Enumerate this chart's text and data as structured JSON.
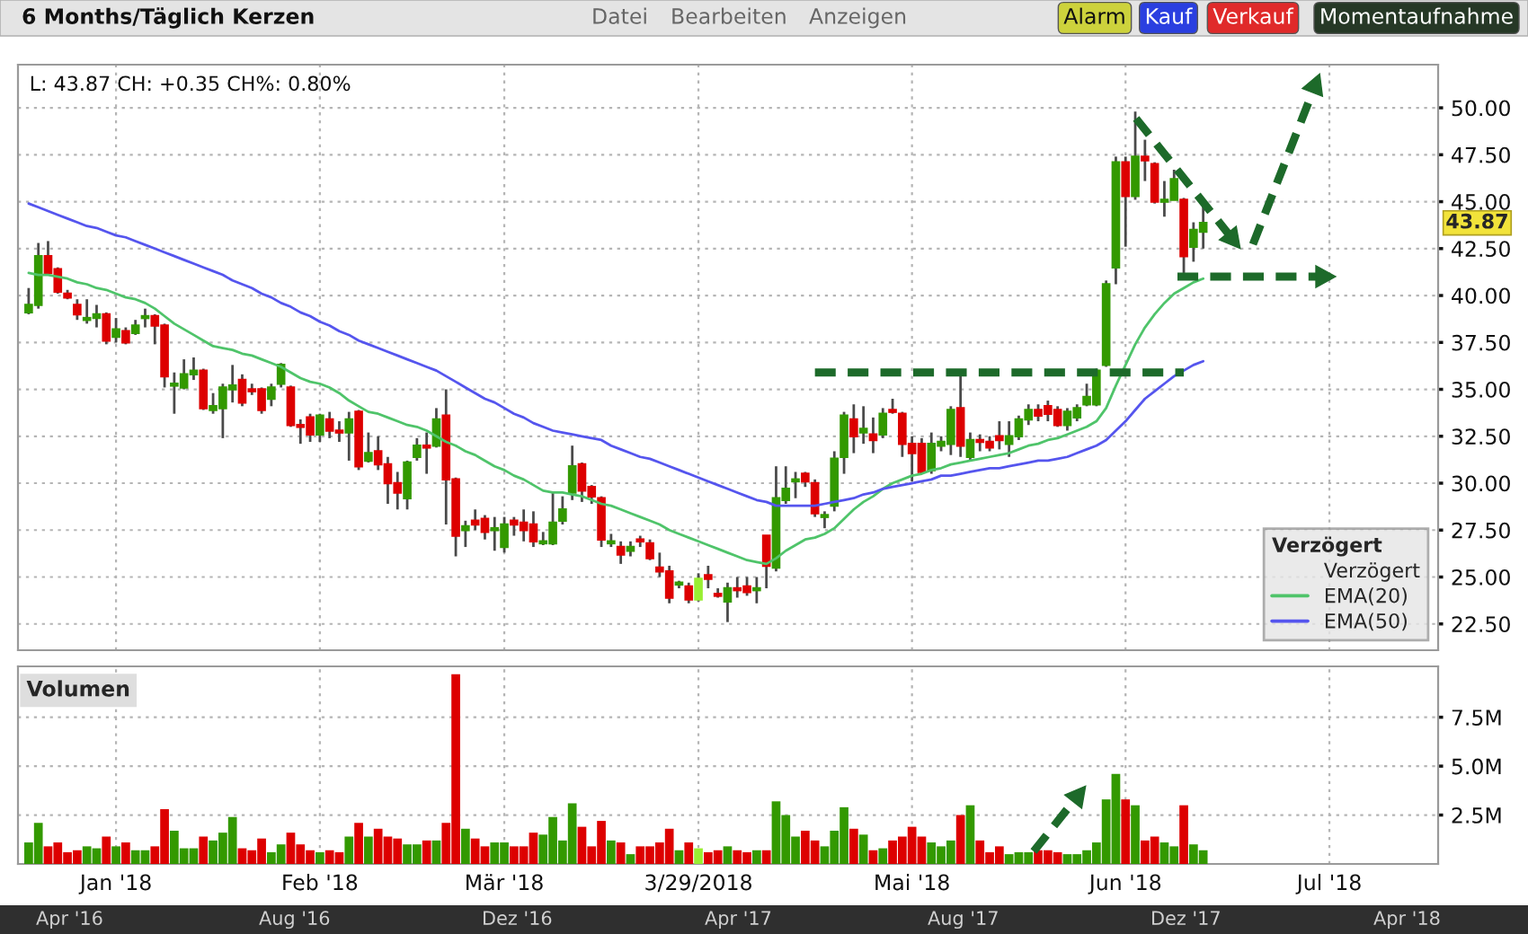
{
  "chart_data": [
    {
      "type": "candlestick",
      "categories": [
        null,
        null,
        null,
        null,
        null,
        null,
        null,
        null,
        null,
        null,
        null,
        null,
        null,
        null,
        null,
        null,
        null,
        null,
        null,
        null,
        null,
        null,
        null,
        null,
        null,
        null,
        null,
        null,
        null,
        null,
        null,
        null,
        null,
        null,
        null,
        null,
        null,
        null,
        null,
        null,
        null,
        null,
        null,
        null,
        null,
        null,
        null,
        null,
        null,
        null,
        null,
        null,
        null,
        null,
        null,
        null,
        null,
        null,
        null,
        null,
        null,
        null,
        null,
        null,
        null,
        null,
        null,
        null,
        null,
        null,
        null,
        null,
        null,
        null,
        null,
        null,
        null,
        null,
        null,
        null,
        null,
        null,
        null,
        null,
        null,
        null,
        null,
        null,
        null,
        null,
        null,
        null,
        null,
        null,
        null,
        null,
        null,
        null,
        null,
        null,
        null,
        null,
        null,
        null,
        null,
        null,
        null,
        null,
        null,
        null,
        null,
        null,
        null,
        null,
        null,
        null,
        null,
        null,
        null,
        null,
        null,
        null,
        null,
        null,
        null,
        null,
        null,
        null,
        null,
        null,
        null,
        null,
        null,
        null,
        null,
        null,
        null,
        null,
        null,
        null,
        null,
        null,
        null,
        null,
        null,
        null
      ],
      "series": [
        {
          "type": "candlestick",
          "name": "Verzögert",
          "ohlc": [
            [
              39.1,
              40.4,
              39.0,
              39.5
            ],
            [
              39.5,
              42.8,
              39.3,
              42.1
            ],
            [
              42.1,
              42.9,
              41.1,
              41.2
            ],
            [
              41.4,
              41.5,
              40.1,
              40.2
            ],
            [
              40.1,
              40.3,
              39.8,
              39.9
            ],
            [
              39.5,
              39.8,
              38.7,
              39.0
            ],
            [
              38.7,
              39.8,
              38.5,
              38.8
            ],
            [
              38.8,
              39.5,
              38.3,
              39.0
            ],
            [
              39.0,
              39.1,
              37.4,
              37.6
            ],
            [
              37.8,
              38.8,
              37.5,
              38.2
            ],
            [
              38.1,
              38.3,
              37.4,
              37.5
            ],
            [
              38.0,
              38.7,
              37.9,
              38.4
            ],
            [
              38.8,
              39.3,
              38.3,
              38.9
            ],
            [
              38.9,
              39.0,
              37.4,
              38.4
            ],
            [
              38.4,
              38.5,
              35.1,
              35.7
            ],
            [
              35.2,
              35.9,
              33.7,
              35.3
            ],
            [
              35.1,
              36.6,
              35.0,
              35.8
            ],
            [
              35.8,
              36.7,
              35.5,
              36.0
            ],
            [
              36.0,
              36.1,
              33.9,
              34.0
            ],
            [
              33.9,
              34.8,
              33.7,
              34.1
            ],
            [
              34.0,
              35.3,
              32.4,
              35.1
            ],
            [
              35.0,
              36.3,
              34.3,
              35.2
            ],
            [
              35.5,
              35.8,
              34.1,
              34.3
            ],
            [
              35.0,
              35.3,
              34.7,
              34.9
            ],
            [
              35.0,
              35.1,
              33.7,
              33.9
            ],
            [
              34.5,
              35.3,
              34.1,
              35.1
            ],
            [
              35.3,
              36.4,
              35.1,
              36.3
            ],
            [
              35.1,
              35.2,
              33.0,
              33.1
            ],
            [
              33.1,
              33.4,
              32.1,
              33.0
            ],
            [
              33.5,
              33.7,
              32.2,
              32.6
            ],
            [
              32.6,
              33.7,
              32.2,
              33.6
            ],
            [
              33.4,
              33.8,
              32.4,
              32.8
            ],
            [
              32.8,
              33.3,
              32.2,
              32.7
            ],
            [
              32.7,
              33.8,
              31.2,
              33.4
            ],
            [
              33.8,
              33.9,
              30.7,
              30.9
            ],
            [
              31.2,
              32.7,
              31.1,
              31.6
            ],
            [
              31.7,
              32.5,
              30.7,
              31.0
            ],
            [
              31.0,
              31.4,
              28.9,
              30.0
            ],
            [
              30.0,
              30.6,
              28.6,
              29.5
            ],
            [
              29.2,
              31.2,
              28.6,
              31.1
            ],
            [
              31.4,
              32.4,
              31.2,
              32.0
            ],
            [
              32.0,
              32.7,
              30.5,
              31.9
            ],
            [
              32.0,
              34.0,
              31.9,
              33.4
            ],
            [
              33.6,
              35.0,
              27.8,
              30.2
            ],
            [
              30.2,
              30.3,
              26.1,
              27.2
            ],
            [
              27.5,
              28.0,
              26.6,
              27.7
            ],
            [
              28.0,
              28.6,
              27.5,
              27.8
            ],
            [
              28.1,
              28.3,
              27.0,
              27.4
            ],
            [
              27.5,
              28.2,
              26.4,
              27.6
            ],
            [
              26.6,
              28.2,
              26.3,
              27.8
            ],
            [
              28.0,
              28.2,
              27.2,
              27.8
            ],
            [
              27.9,
              28.6,
              26.9,
              27.5
            ],
            [
              27.8,
              28.5,
              26.6,
              26.9
            ],
            [
              26.8,
              27.4,
              26.7,
              26.9
            ],
            [
              26.8,
              29.5,
              26.7,
              27.9
            ],
            [
              28.0,
              29.3,
              27.8,
              28.6
            ],
            [
              29.5,
              32.0,
              29.1,
              30.9
            ],
            [
              31.0,
              31.1,
              29.0,
              29.6
            ],
            [
              29.8,
              29.9,
              28.9,
              29.3
            ],
            [
              29.2,
              29.3,
              26.6,
              27.0
            ],
            [
              26.8,
              27.3,
              26.6,
              26.9
            ],
            [
              26.6,
              26.9,
              25.7,
              26.2
            ],
            [
              26.4,
              26.9,
              26.1,
              26.6
            ],
            [
              27.0,
              27.2,
              26.6,
              26.9
            ],
            [
              26.8,
              27.0,
              25.9,
              26.0
            ],
            [
              25.5,
              26.3,
              25.0,
              25.3
            ],
            [
              25.3,
              25.6,
              23.6,
              23.9
            ],
            [
              24.6,
              24.8,
              24.4,
              24.7
            ],
            [
              24.5,
              24.7,
              23.6,
              23.8
            ],
            [
              23.8,
              25.2,
              23.7,
              24.9
            ],
            [
              25.1,
              25.6,
              24.4,
              24.9
            ],
            [
              24.1,
              24.4,
              23.9,
              24.0
            ],
            [
              23.7,
              24.7,
              22.6,
              24.4
            ],
            [
              24.4,
              25.0,
              23.9,
              24.3
            ],
            [
              24.5,
              25.0,
              24.0,
              24.2
            ],
            [
              24.3,
              25.0,
              23.6,
              24.4
            ],
            [
              27.2,
              27.2,
              24.4,
              25.6
            ],
            [
              25.5,
              30.9,
              25.3,
              29.2
            ],
            [
              29.1,
              30.9,
              28.9,
              29.7
            ],
            [
              30.1,
              30.6,
              29.2,
              30.2
            ],
            [
              30.5,
              30.6,
              29.8,
              30.1
            ],
            [
              30.0,
              30.2,
              28.2,
              28.4
            ],
            [
              28.2,
              28.5,
              27.6,
              28.3
            ],
            [
              28.8,
              31.7,
              28.5,
              31.3
            ],
            [
              31.4,
              33.8,
              30.5,
              33.6
            ],
            [
              33.4,
              34.2,
              31.6,
              32.5
            ],
            [
              32.7,
              34.1,
              32.1,
              32.9
            ],
            [
              32.6,
              33.5,
              31.6,
              32.3
            ],
            [
              32.6,
              34.0,
              32.4,
              33.7
            ],
            [
              33.9,
              34.5,
              33.7,
              33.8
            ],
            [
              33.7,
              33.8,
              31.4,
              32.1
            ],
            [
              32.1,
              32.5,
              30.1,
              31.6
            ],
            [
              32.1,
              32.4,
              30.5,
              30.6
            ],
            [
              30.7,
              32.7,
              30.5,
              32.1
            ],
            [
              32.0,
              32.5,
              31.7,
              32.2
            ],
            [
              32.1,
              34.1,
              31.5,
              33.9
            ],
            [
              34.0,
              35.8,
              31.4,
              32.0
            ],
            [
              31.4,
              32.7,
              31.2,
              32.3
            ],
            [
              32.3,
              32.6,
              31.7,
              32.2
            ],
            [
              32.2,
              32.5,
              31.7,
              31.9
            ],
            [
              32.5,
              33.3,
              31.8,
              32.3
            ],
            [
              32.1,
              33.3,
              31.4,
              32.5
            ],
            [
              32.5,
              33.6,
              32.3,
              33.4
            ],
            [
              33.4,
              34.2,
              33.1,
              33.9
            ],
            [
              33.9,
              34.2,
              33.3,
              33.6
            ],
            [
              34.1,
              34.4,
              33.3,
              33.7
            ],
            [
              33.9,
              34.1,
              33.0,
              33.1
            ],
            [
              33.1,
              34.0,
              32.8,
              33.8
            ],
            [
              33.5,
              34.2,
              33.3,
              34.0
            ],
            [
              34.2,
              35.3,
              34.1,
              34.6
            ],
            [
              34.2,
              36.1,
              34.1,
              36.0
            ],
            [
              36.3,
              40.8,
              36.2,
              40.6
            ],
            [
              41.5,
              47.4,
              40.6,
              47.1
            ],
            [
              47.1,
              47.4,
              42.6,
              45.3
            ],
            [
              45.3,
              49.8,
              45.1,
              47.4
            ],
            [
              47.4,
              48.3,
              46.1,
              47.2
            ],
            [
              47.0,
              47.1,
              44.9,
              45.0
            ],
            [
              45.0,
              46.1,
              44.2,
              45.1
            ],
            [
              45.1,
              46.7,
              45.1,
              46.2
            ],
            [
              45.1,
              45.2,
              41.2,
              42.1
            ],
            [
              42.6,
              43.9,
              41.8,
              43.5
            ],
            [
              43.4,
              44.8,
              42.5,
              43.87
            ],
            null,
            null,
            null,
            null,
            null,
            null,
            null,
            null,
            null,
            null,
            null,
            null,
            null,
            null,
            null,
            null,
            null,
            null,
            null,
            null,
            null,
            null,
            null,
            null
          ],
          "colors": [
            "#339900",
            "#339900",
            "#dd0000",
            "#dd0000",
            "#dd0000",
            "#dd0000",
            "#339900",
            "#339900",
            "#dd0000",
            "#339900",
            "#dd0000",
            "#339900",
            "#339900",
            "#dd0000",
            "#dd0000",
            "#339900",
            "#339900",
            "#339900",
            "#dd0000",
            "#339900",
            "#339900",
            "#339900",
            "#dd0000",
            "#dd0000",
            "#dd0000",
            "#339900",
            "#339900",
            "#dd0000",
            "#dd0000",
            "#dd0000",
            "#339900",
            "#dd0000",
            "#dd0000",
            "#339900",
            "#dd0000",
            "#339900",
            "#dd0000",
            "#dd0000",
            "#dd0000",
            "#339900",
            "#339900",
            "#dd0000",
            "#339900",
            "#dd0000",
            "#dd0000",
            "#339900",
            "#dd0000",
            "#dd0000",
            "#339900",
            "#339900",
            "#dd0000",
            "#dd0000",
            "#dd0000",
            "#339900",
            "#339900",
            "#339900",
            "#339900",
            "#dd0000",
            "#dd0000",
            "#dd0000",
            "#339900",
            "#dd0000",
            "#339900",
            "#dd0000",
            "#dd0000",
            "#dd0000",
            "#dd0000",
            "#339900",
            "#dd0000",
            "#99ee33",
            "#dd0000",
            "#dd0000",
            "#339900",
            "#dd0000",
            "#dd0000",
            "#339900",
            "#dd0000",
            "#339900",
            "#339900",
            "#339900",
            "#dd0000",
            "#dd0000",
            "#339900",
            "#339900",
            "#339900",
            "#dd0000",
            "#339900",
            "#dd0000",
            "#339900",
            "#dd0000",
            "#dd0000",
            "#dd0000",
            "#dd0000",
            "#339900",
            "#339900",
            "#339900",
            "#dd0000",
            "#339900",
            "#dd0000",
            "#dd0000",
            "#dd0000",
            "#339900",
            "#339900",
            "#339900",
            "#dd0000",
            "#dd0000",
            "#dd0000",
            "#339900",
            "#339900",
            "#339900",
            "#339900",
            "#339900",
            "#339900",
            "#dd0000",
            "#339900",
            "#dd0000",
            "#dd0000",
            "#339900",
            "#339900",
            "#dd0000",
            "#339900",
            "#339900",
            null,
            null,
            null,
            null,
            null,
            null,
            null,
            null,
            null,
            null,
            null,
            null,
            null,
            null,
            null,
            null,
            null,
            null,
            null,
            null,
            null,
            null,
            null,
            null
          ]
        },
        {
          "type": "line",
          "name": "EMA(20)",
          "color": "#4fc46a",
          "values": [
            41.2,
            41.1,
            41.1,
            41.0,
            40.9,
            40.7,
            40.6,
            40.4,
            40.3,
            40.1,
            39.9,
            39.8,
            39.6,
            39.3,
            38.9,
            38.5,
            38.2,
            37.9,
            37.6,
            37.3,
            37.2,
            37.1,
            36.9,
            36.8,
            36.6,
            36.4,
            36.2,
            35.9,
            35.6,
            35.4,
            35.3,
            35.1,
            34.8,
            34.4,
            34.1,
            33.8,
            33.7,
            33.5,
            33.3,
            33.1,
            33.0,
            32.8,
            32.5,
            32.2,
            32.0,
            31.7,
            31.5,
            31.2,
            30.9,
            30.7,
            30.4,
            30.2,
            29.9,
            29.6,
            29.5,
            29.5,
            29.4,
            29.3,
            29.1,
            28.9,
            28.8,
            28.6,
            28.4,
            28.2,
            28.0,
            27.8,
            27.5,
            27.3,
            27.1,
            26.9,
            26.7,
            26.5,
            26.3,
            26.1,
            25.9,
            25.8,
            25.7,
            26.0,
            26.4,
            26.7,
            27.0,
            27.1,
            27.3,
            27.6,
            28.1,
            28.6,
            29.0,
            29.3,
            29.7,
            30.0,
            30.2,
            30.4,
            30.5,
            30.7,
            30.8,
            31.0,
            31.1,
            31.2,
            31.3,
            31.4,
            31.5,
            31.6,
            31.8,
            32.0,
            32.1,
            32.3,
            32.4,
            32.6,
            32.8,
            33.0,
            33.3,
            34.0,
            35.2,
            36.3,
            37.4,
            38.3,
            39.0,
            39.6,
            40.1,
            40.4,
            40.7,
            40.9,
            null,
            null,
            null,
            null,
            null,
            null,
            null,
            null,
            null,
            null,
            null,
            null,
            null,
            null,
            null,
            null,
            null,
            null,
            null,
            null,
            null,
            null,
            null,
            null
          ]
        },
        {
          "type": "line",
          "name": "EMA(50)",
          "color": "#5555ee",
          "values": [
            44.9,
            44.7,
            44.5,
            44.3,
            44.1,
            43.9,
            43.7,
            43.6,
            43.4,
            43.2,
            43.1,
            42.9,
            42.7,
            42.5,
            42.3,
            42.1,
            41.9,
            41.7,
            41.5,
            41.3,
            41.1,
            40.8,
            40.6,
            40.4,
            40.1,
            39.9,
            39.6,
            39.4,
            39.1,
            38.9,
            38.6,
            38.4,
            38.1,
            37.9,
            37.6,
            37.4,
            37.2,
            37.0,
            36.8,
            36.6,
            36.4,
            36.2,
            36.0,
            35.7,
            35.4,
            35.1,
            34.8,
            34.5,
            34.3,
            34.0,
            33.7,
            33.5,
            33.2,
            33.0,
            32.8,
            32.7,
            32.6,
            32.5,
            32.4,
            32.3,
            32.0,
            31.8,
            31.6,
            31.4,
            31.3,
            31.1,
            30.9,
            30.7,
            30.5,
            30.3,
            30.1,
            29.9,
            29.7,
            29.5,
            29.3,
            29.1,
            29.0,
            28.8,
            28.8,
            28.8,
            28.8,
            28.8,
            28.9,
            29.0,
            29.1,
            29.2,
            29.4,
            29.5,
            29.7,
            29.8,
            29.9,
            30.0,
            30.1,
            30.2,
            30.4,
            30.4,
            30.5,
            30.6,
            30.7,
            30.8,
            30.8,
            30.9,
            31.0,
            31.1,
            31.2,
            31.2,
            31.3,
            31.4,
            31.6,
            31.8,
            32.0,
            32.3,
            32.8,
            33.3,
            33.9,
            34.5,
            34.9,
            35.3,
            35.7,
            36.0,
            36.3,
            36.5,
            null,
            null,
            null,
            null,
            null,
            null,
            null,
            null,
            null,
            null,
            null,
            null,
            null,
            null,
            null,
            null,
            null,
            null,
            null,
            null,
            null,
            null,
            null,
            null
          ]
        },
        {
          "type": "line",
          "color": "#1d6a2a",
          "line_style": "dashed",
          "values": [
            null,
            null,
            null,
            null,
            null,
            null,
            null,
            null,
            null,
            null,
            null,
            null,
            null,
            null,
            null,
            null,
            null,
            null,
            null,
            null,
            null,
            null,
            null,
            null,
            null,
            null,
            null,
            null,
            null,
            null,
            null,
            null,
            null,
            null,
            null,
            null,
            null,
            null,
            null,
            null,
            null,
            null,
            null,
            null,
            null,
            null,
            null,
            null,
            null,
            null,
            null,
            null,
            null,
            null,
            null,
            null,
            null,
            null,
            null,
            null,
            null,
            null,
            null,
            null,
            null,
            null,
            null,
            null,
            null,
            null,
            null,
            null,
            null,
            null,
            null,
            null,
            null,
            null,
            null,
            null,
            null,
            35.9,
            35.9,
            35.9,
            35.9,
            35.9,
            35.9,
            35.9,
            35.9,
            35.9,
            35.9,
            35.9,
            35.9,
            35.9,
            35.9,
            35.9,
            35.9,
            35.9,
            35.9,
            35.9,
            35.9,
            35.9,
            35.9,
            35.9,
            35.9,
            35.9,
            35.9,
            35.9,
            35.9,
            35.9,
            35.9,
            35.9,
            35.9,
            35.9,
            35.9,
            35.9,
            35.9,
            35.9,
            35.9,
            35.9,
            null,
            null,
            null,
            null,
            null,
            null,
            null,
            null,
            null,
            null,
            null,
            null,
            null,
            null,
            null,
            null,
            null,
            null,
            null,
            null,
            null,
            null,
            null,
            null,
            null,
            null
          ]
        }
      ],
      "ylim": [
        21.1,
        52.3
      ],
      "yticks": [
        {
          "value": 22.5,
          "label": "22.50"
        },
        {
          "value": 25,
          "label": "25.00"
        },
        {
          "value": 27.5,
          "label": "27.50"
        },
        {
          "value": 30,
          "label": "30.00"
        },
        {
          "value": 32.5,
          "label": "32.50"
        },
        {
          "value": 35,
          "label": "35.00"
        },
        {
          "value": 37.5,
          "label": "37.50"
        },
        {
          "value": 40,
          "label": "40.00"
        },
        {
          "value": 42.5,
          "label": "42.50"
        },
        {
          "value": 45,
          "label": "45.00"
        },
        {
          "value": 47.5,
          "label": "47.50"
        },
        {
          "value": 50,
          "label": "50.00"
        }
      ],
      "grid": true,
      "legend": "bottom right",
      "legend_title": "Verzögert",
      "tick_labels": "y",
      "annotations": [
        "6 Months/Täglich Kerzen",
        "Datei",
        "Bearbeiten",
        "Anzeigen",
        "Alarm",
        "Kauf",
        "Verkauf",
        "Momentaufnahme",
        "L: 43.87 CH: +0.35 CH%: 0.80%",
        {
          "text": "43.87",
          "y": 43.87
        }
      ]
    },
    {
      "type": "bar",
      "title": "Volumen",
      "categories": [
        null,
        null,
        null,
        null,
        null,
        null,
        null,
        null,
        null,
        "Jan '18",
        null,
        null,
        null,
        null,
        null,
        null,
        null,
        null,
        null,
        null,
        null,
        null,
        null,
        null,
        null,
        null,
        null,
        null,
        null,
        null,
        "Feb '18",
        null,
        null,
        null,
        null,
        null,
        null,
        null,
        null,
        null,
        null,
        null,
        null,
        null,
        null,
        null,
        null,
        null,
        null,
        "Mär '18",
        null,
        null,
        null,
        null,
        null,
        null,
        null,
        null,
        null,
        null,
        null,
        null,
        null,
        null,
        null,
        null,
        null,
        null,
        null,
        "3/29/2018",
        null,
        null,
        null,
        null,
        null,
        null,
        null,
        null,
        null,
        null,
        null,
        null,
        null,
        null,
        null,
        null,
        null,
        null,
        null,
        null,
        null,
        "Mai '18",
        null,
        null,
        null,
        null,
        null,
        null,
        null,
        null,
        null,
        null,
        null,
        null,
        null,
        null,
        null,
        null,
        null,
        null,
        null,
        null,
        null,
        "Jun '18",
        null,
        null,
        null,
        null,
        null,
        null,
        null,
        null,
        null,
        null,
        null,
        null,
        null,
        null,
        null,
        null,
        null,
        null,
        null,
        null,
        "Jul '18",
        null,
        null,
        null,
        null,
        null,
        null,
        null,
        null,
        null,
        null,
        null
      ],
      "values": [
        1.1,
        2.1,
        0.9,
        1.1,
        0.6,
        0.7,
        0.9,
        0.8,
        1.4,
        0.9,
        1.1,
        0.7,
        0.7,
        0.9,
        2.8,
        1.7,
        0.8,
        0.8,
        1.4,
        1.2,
        1.6,
        2.4,
        0.8,
        0.7,
        1.3,
        0.6,
        1.0,
        1.6,
        1.0,
        0.7,
        0.6,
        0.7,
        0.6,
        1.4,
        2.1,
        1.4,
        1.8,
        1.4,
        1.3,
        1.0,
        1.0,
        1.2,
        1.2,
        2.1,
        9.7,
        1.8,
        1.3,
        0.9,
        1.1,
        1.1,
        0.9,
        0.9,
        1.6,
        1.5,
        2.4,
        1.2,
        3.1,
        1.9,
        0.9,
        2.2,
        1.2,
        1.1,
        0.5,
        0.9,
        0.9,
        1.1,
        1.8,
        0.7,
        1.1,
        0.8,
        0.6,
        0.7,
        0.9,
        0.7,
        0.6,
        0.7,
        0.7,
        3.2,
        2.5,
        1.4,
        1.7,
        1.2,
        0.9,
        1.7,
        2.9,
        1.8,
        1.5,
        0.7,
        0.8,
        1.2,
        1.4,
        1.9,
        1.4,
        1.1,
        0.9,
        1.2,
        2.5,
        3.0,
        1.2,
        0.6,
        0.9,
        0.5,
        0.6,
        0.6,
        0.7,
        0.7,
        0.6,
        0.5,
        0.5,
        0.7,
        1.1,
        3.3,
        4.6,
        3.3,
        3.0,
        1.2,
        1.4,
        1.1,
        0.9,
        3.0,
        1.0,
        0.7,
        null,
        null,
        null,
        null,
        null,
        null,
        null,
        null,
        null,
        null,
        null,
        null,
        null,
        null,
        null,
        null,
        null,
        null,
        null,
        null,
        null,
        null,
        null,
        null
      ],
      "colors": [
        "#339900",
        "#339900",
        "#dd0000",
        "#dd0000",
        "#dd0000",
        "#dd0000",
        "#339900",
        "#339900",
        "#dd0000",
        "#339900",
        "#dd0000",
        "#339900",
        "#339900",
        "#dd0000",
        "#dd0000",
        "#339900",
        "#339900",
        "#339900",
        "#dd0000",
        "#339900",
        "#339900",
        "#339900",
        "#dd0000",
        "#dd0000",
        "#dd0000",
        "#339900",
        "#339900",
        "#dd0000",
        "#dd0000",
        "#dd0000",
        "#339900",
        "#dd0000",
        "#dd0000",
        "#339900",
        "#dd0000",
        "#339900",
        "#dd0000",
        "#dd0000",
        "#dd0000",
        "#339900",
        "#339900",
        "#dd0000",
        "#339900",
        "#dd0000",
        "#dd0000",
        "#339900",
        "#dd0000",
        "#dd0000",
        "#339900",
        "#339900",
        "#dd0000",
        "#dd0000",
        "#dd0000",
        "#339900",
        "#339900",
        "#339900",
        "#339900",
        "#dd0000",
        "#dd0000",
        "#dd0000",
        "#339900",
        "#dd0000",
        "#339900",
        "#dd0000",
        "#dd0000",
        "#dd0000",
        "#dd0000",
        "#339900",
        "#dd0000",
        "#99ee33",
        "#dd0000",
        "#dd0000",
        "#339900",
        "#dd0000",
        "#dd0000",
        "#339900",
        "#dd0000",
        "#339900",
        "#339900",
        "#339900",
        "#dd0000",
        "#dd0000",
        "#339900",
        "#339900",
        "#339900",
        "#dd0000",
        "#339900",
        "#dd0000",
        "#339900",
        "#dd0000",
        "#dd0000",
        "#dd0000",
        "#dd0000",
        "#339900",
        "#339900",
        "#339900",
        "#dd0000",
        "#339900",
        "#dd0000",
        "#dd0000",
        "#dd0000",
        "#339900",
        "#339900",
        "#339900",
        "#dd0000",
        "#dd0000",
        "#dd0000",
        "#339900",
        "#339900",
        "#339900",
        "#339900",
        "#339900",
        "#339900",
        "#dd0000",
        "#339900",
        "#dd0000",
        "#dd0000",
        "#339900",
        "#339900",
        "#dd0000",
        "#339900",
        "#339900",
        null,
        null,
        null,
        null,
        null,
        null,
        null,
        null,
        null,
        null,
        null,
        null,
        null,
        null,
        null,
        null,
        null,
        null,
        null,
        null,
        null,
        null,
        null,
        null
      ],
      "ylim": [
        0,
        10.1
      ],
      "yticks": [
        {
          "value": 2.5,
          "label": "2.5M"
        },
        {
          "value": 5,
          "label": "5.0M"
        },
        {
          "value": 7.5,
          "label": "7.5M"
        }
      ],
      "grid": true,
      "annotations": [
        "Apr '16",
        "Aug '16",
        "Dez '16",
        "Apr '17",
        "Aug '17",
        "Dez '17",
        "Apr '18"
      ]
    }
  ]
}
